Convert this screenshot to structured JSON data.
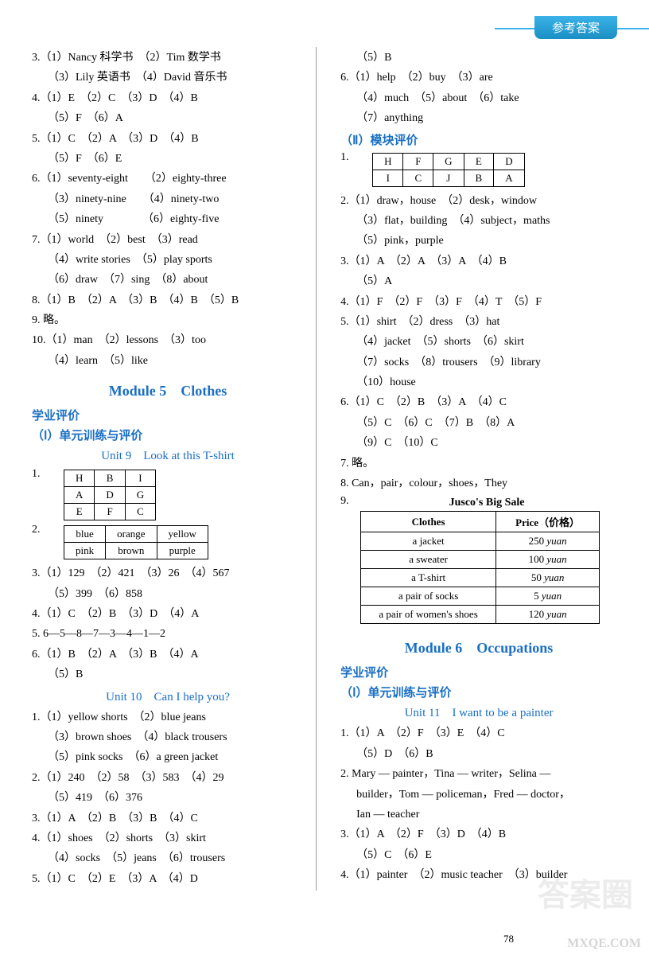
{
  "header": "参考答案",
  "page_number": "78",
  "watermark_main": "答案圈",
  "watermark_url": "MXQE.COM",
  "left": {
    "l3": "3.（1）Nancy 科学书　（2）Tim 数学书",
    "l3b": "（3）Lily 英语书　（4）David 音乐书",
    "l4": "4.（1）E　（2）C　（3）D　（4）B",
    "l4b": "（5）F　（6）A",
    "l5": "5.（1）C　（2）A　（3）D　（4）B",
    "l5b": "（5）F　（6）E",
    "l6": "6.（1）seventy-eight　　（2）eighty-three",
    "l6b": "（3）ninety-nine　　（4）ninety-two",
    "l6c": "（5）ninety　　　　（6）eighty-five",
    "l7": "7.（1）world　（2）best　（3）read",
    "l7b": "（4）write stories　（5）play sports",
    "l7c": "（6）draw　（7）sing　（8）about",
    "l8": "8.（1）B　（2）A　（3）B　（4）B　（5）B",
    "l9": "9. 略。",
    "l10": "10.（1）man　（2）lessons　（3）too",
    "l10b": "（4）learn　（5）like",
    "mod5": "Module 5　Clothes",
    "xypj": "学业评价",
    "sec1": "（Ⅰ）单元训练与评价",
    "unit9": "Unit 9　Look at this T-shirt",
    "t1": {
      "rows": [
        [
          "H",
          "B",
          "I"
        ],
        [
          "A",
          "D",
          "G"
        ],
        [
          "E",
          "F",
          "C"
        ]
      ]
    },
    "t2": {
      "rows": [
        [
          "blue",
          "orange",
          "yellow"
        ],
        [
          "pink",
          "brown",
          "purple"
        ]
      ]
    },
    "u9_3": "3.（1）129　（2）421　（3）26　（4）567",
    "u9_3b": "（5）399　（6）858",
    "u9_4": "4.（1）C　（2）B　（3）D　（4）A",
    "u9_5": "5. 6—5—8—7—3—4—1—2",
    "u9_6": "6.（1）B　（2）A　（3）B　（4）A",
    "u9_6b": "（5）B",
    "unit10": "Unit 10　Can I help you?",
    "u10_1": "1.（1）yellow shorts　（2）blue jeans",
    "u10_1b": "（3）brown shoes　（4）black trousers",
    "u10_1c": "（5）pink socks　（6）a green jacket",
    "u10_2": "2.（1）240　（2）58　（3）583　（4）29",
    "u10_2b": "（5）419　（6）376",
    "u10_3": "3.（1）A　（2）B　（3）B　（4）C",
    "u10_4": "4.（1）shoes　（2）shorts　（3）skirt",
    "u10_4b": "（4）socks　（5）jeans　（6）trousers",
    "u10_5": "5.（1）C　（2）E　（3）A　（4）D"
  },
  "right": {
    "r5b": "（5）B",
    "r6": "6.（1）help　（2）buy　（3）are",
    "r6b": "（4）much　（5）about　（6）take",
    "r6c": "（7）anything",
    "sec2": "（Ⅱ）模块评价",
    "t3": {
      "rows": [
        [
          "H",
          "F",
          "G",
          "E",
          "D"
        ],
        [
          "I",
          "C",
          "J",
          "B",
          "A"
        ]
      ]
    },
    "m2": "2.（1）draw，house　（2）desk，window",
    "m2b": "（3）flat，building　（4）subject，maths",
    "m2c": "（5）pink，purple",
    "m3": "3.（1）A　（2）A　（3）A　（4）B",
    "m3b": "（5）A",
    "m4": "4.（1）F　（2）F　（3）F　（4）T　（5）F",
    "m5": "5.（1）shirt　（2）dress　（3）hat",
    "m5b": "（4）jacket　（5）shorts　（6）skirt",
    "m5c": "（7）socks　（8）trousers　（9）library",
    "m5d": "（10）house",
    "m6": "6.（1）C　（2）B　（3）A　（4）C",
    "m6b": "（5）C　（6）C　（7）B　（8）A",
    "m6c": "（9）C　（10）C",
    "m7": "7. 略。",
    "m8": "8. Can，pair，colour，shoes，They",
    "m9": "9.",
    "sale_title": "Jusco's Big Sale",
    "sale": {
      "header": [
        "Clothes",
        "Price（价格）"
      ],
      "rows": [
        [
          "a jacket",
          "250 yuan"
        ],
        [
          "a sweater",
          "100 yuan"
        ],
        [
          "a T-shirt",
          "50 yuan"
        ],
        [
          "a pair of socks",
          "5 yuan"
        ],
        [
          "a pair of women's shoes",
          "120 yuan"
        ]
      ]
    },
    "mod6": "Module 6　Occupations",
    "xypj2": "学业评价",
    "sec1b": "（Ⅰ）单元训练与评价",
    "unit11": "Unit 11　I want to be a painter",
    "u11_1": "1.（1）A　（2）F　（3）E　（4）C",
    "u11_1b": "（5）D　（6）B",
    "u11_2": "2. Mary — painter，Tina — writer，Selina —",
    "u11_2b": "builder，Tom — policeman，Fred — doctor，",
    "u11_2c": "Ian — teacher",
    "u11_3": "3.（1）A　（2）F　（3）D　（4）B",
    "u11_3b": "（5）C　（6）E",
    "u11_4": "4.（1）painter　（2）music teacher　（3）builder"
  }
}
